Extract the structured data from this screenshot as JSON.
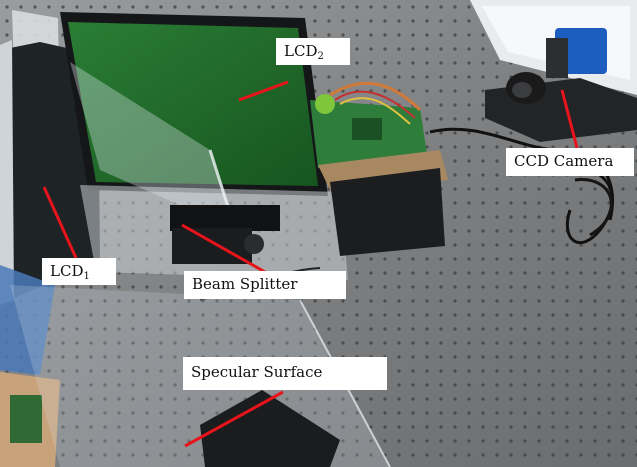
{
  "labels": {
    "lcd2": {
      "text": "LCD",
      "subscript": "2"
    },
    "lcd1": {
      "text": "LCD",
      "subscript": "1"
    },
    "beam_splitter": "Beam Splitter",
    "ccd_camera": "CCD Camera",
    "specular_surface": "Specular Surface"
  },
  "colors": {
    "pointer": "#e8141b",
    "lcd_screen": "#1f6e2c",
    "table": "#7c7e80"
  }
}
